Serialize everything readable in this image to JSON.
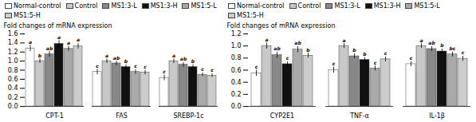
{
  "chart_data": [
    {
      "type": "bar",
      "ylabel": "Fold changes of mRNA expression",
      "categories": [
        "CPT-1",
        "FAS",
        "SREBP-1c"
      ],
      "ylim": [
        0,
        1.6
      ],
      "yticks": [
        {
          "value": 0,
          "label": "0.0"
        },
        0.2,
        0.4,
        0.6,
        0.8,
        {
          "value": 1.0,
          "label": "1.0"
        },
        1.2,
        1.4,
        1.6
      ],
      "legend": "upper left",
      "series": [
        {
          "name": "Normal-control",
          "color": "#ffffff",
          "values": [
            1.28,
            0.76,
            0.63
          ],
          "errors": [
            0.07,
            0.06,
            0.06
          ],
          "annotations": [
            "a",
            "c",
            "c"
          ]
        },
        {
          "name": "Control",
          "color": "#c8c8c8",
          "values": [
            1.0,
            1.0,
            1.0
          ],
          "errors": [
            0.05,
            0.05,
            0.05
          ],
          "annotations": [
            "b",
            "a",
            "a"
          ]
        },
        {
          "name": "MS1:3-L",
          "color": "#888888",
          "values": [
            1.15,
            0.95,
            0.92
          ],
          "errors": [
            0.06,
            0.05,
            0.05
          ],
          "annotations": [
            "ab",
            "ab",
            "ab"
          ]
        },
        {
          "name": "MS1:3-H",
          "color": "#111111",
          "values": [
            1.38,
            0.87,
            0.87
          ],
          "errors": [
            0.07,
            0.05,
            0.05
          ],
          "annotations": [
            "a",
            "b",
            "b"
          ]
        },
        {
          "name": "MS1:5-L",
          "color": "#aaaaaa",
          "values": [
            1.27,
            0.76,
            0.7
          ],
          "errors": [
            0.06,
            0.05,
            0.04
          ],
          "annotations": [
            "a",
            "c",
            "c"
          ]
        },
        {
          "name": "MS1:5-H",
          "color": "#cccccc",
          "values": [
            1.33,
            0.75,
            0.68
          ],
          "errors": [
            0.06,
            0.05,
            0.04
          ],
          "annotations": [
            "a",
            "c",
            "c"
          ]
        }
      ]
    },
    {
      "type": "bar",
      "ylabel": "Fold changes of mRNA expression",
      "categories": [
        "CYP2E1",
        "TNF-α",
        "IL-1β"
      ],
      "ylim": [
        0,
        1.2
      ],
      "yticks": [
        {
          "value": 0,
          "label": "0.0"
        },
        0.2,
        0.4,
        0.6,
        0.8,
        {
          "value": 1.0,
          "label": "1.0"
        },
        1.2
      ],
      "legend": "upper left",
      "series": [
        {
          "name": "Normal-control",
          "color": "#ffffff",
          "values": [
            0.55,
            0.6,
            0.7
          ],
          "errors": [
            0.05,
            0.05,
            0.04
          ],
          "annotations": [
            "c",
            "c",
            "c"
          ]
        },
        {
          "name": "Control",
          "color": "#c8c8c8",
          "values": [
            1.0,
            1.0,
            1.0
          ],
          "errors": [
            0.05,
            0.04,
            0.04
          ],
          "annotations": [
            "a",
            "a",
            "a"
          ]
        },
        {
          "name": "MS1:3-L",
          "color": "#888888",
          "values": [
            0.85,
            0.83,
            0.95
          ],
          "errors": [
            0.05,
            0.04,
            0.04
          ],
          "annotations": [
            "ab",
            "b",
            "ab"
          ]
        },
        {
          "name": "MS1:3-H",
          "color": "#111111",
          "values": [
            0.7,
            0.77,
            0.91
          ],
          "errors": [
            0.04,
            0.04,
            0.04
          ],
          "annotations": [
            "c",
            "b",
            "b"
          ]
        },
        {
          "name": "MS1:5-L",
          "color": "#aaaaaa",
          "values": [
            0.94,
            0.63,
            0.86
          ],
          "errors": [
            0.05,
            0.04,
            0.04
          ],
          "annotations": [
            "ab",
            "c",
            "bc"
          ]
        },
        {
          "name": "MS1:5-H",
          "color": "#cccccc",
          "values": [
            0.84,
            0.78,
            0.79
          ],
          "errors": [
            0.04,
            0.04,
            0.04
          ],
          "annotations": [
            "b",
            "c",
            "c"
          ]
        }
      ]
    }
  ]
}
